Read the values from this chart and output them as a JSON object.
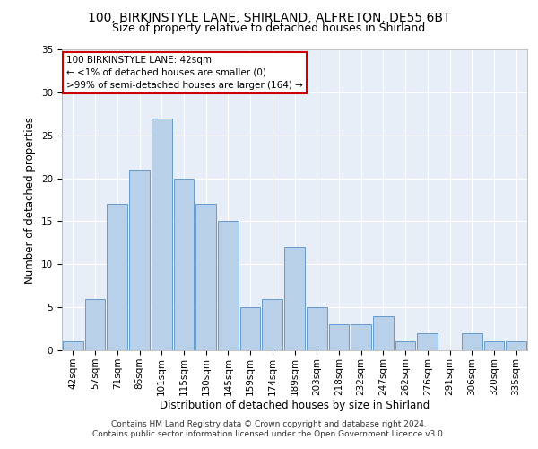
{
  "title1": "100, BIRKINSTYLE LANE, SHIRLAND, ALFRETON, DE55 6BT",
  "title2": "Size of property relative to detached houses in Shirland",
  "xlabel": "Distribution of detached houses by size in Shirland",
  "ylabel": "Number of detached properties",
  "categories": [
    "42sqm",
    "57sqm",
    "71sqm",
    "86sqm",
    "101sqm",
    "115sqm",
    "130sqm",
    "145sqm",
    "159sqm",
    "174sqm",
    "189sqm",
    "203sqm",
    "218sqm",
    "232sqm",
    "247sqm",
    "262sqm",
    "276sqm",
    "291sqm",
    "306sqm",
    "320sqm",
    "335sqm"
  ],
  "values": [
    1,
    6,
    17,
    21,
    27,
    20,
    17,
    15,
    5,
    6,
    12,
    5,
    3,
    3,
    4,
    1,
    2,
    0,
    2,
    1,
    1
  ],
  "bar_color": "#b8d0e8",
  "bar_edge_color": "#6699cc",
  "annotation_lines": [
    "100 BIRKINSTYLE LANE: 42sqm",
    "← <1% of detached houses are smaller (0)",
    ">99% of semi-detached houses are larger (164) →"
  ],
  "annotation_box_color": "#ffffff",
  "annotation_box_edge_color": "#cc0000",
  "ylim": [
    0,
    35
  ],
  "yticks": [
    0,
    5,
    10,
    15,
    20,
    25,
    30,
    35
  ],
  "footer_line1": "Contains HM Land Registry data © Crown copyright and database right 2024.",
  "footer_line2": "Contains public sector information licensed under the Open Government Licence v3.0.",
  "background_color": "#e8eef8",
  "grid_color": "#ffffff",
  "title1_fontsize": 10,
  "title2_fontsize": 9,
  "xlabel_fontsize": 8.5,
  "ylabel_fontsize": 8.5,
  "tick_fontsize": 7.5,
  "annotation_fontsize": 7.5,
  "footer_fontsize": 6.5
}
